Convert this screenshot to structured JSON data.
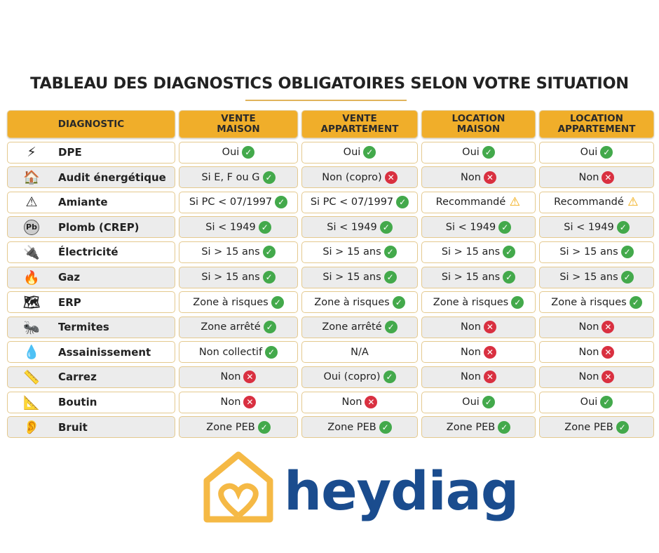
{
  "title": "TABLEAU DES DIAGNOSTICS OBLIGATOIRES SELON VOTRE SITUATION",
  "headers": [
    "DIAGNOSTIC",
    "VENTE MAISON",
    "VENTE APPARTEMENT",
    "LOCATION MAISON",
    "LOCATION APPARTEMENT"
  ],
  "rows": [
    {
      "icon": "energy-label-icon",
      "glyph": "⚡",
      "name": "DPE",
      "cells": [
        {
          "text": "Oui",
          "status": "ok"
        },
        {
          "text": "Oui",
          "status": "ok"
        },
        {
          "text": "Oui",
          "status": "ok"
        },
        {
          "text": "Oui",
          "status": "ok"
        }
      ]
    },
    {
      "icon": "house-gear-icon",
      "glyph": "🏠",
      "name": "Audit énergétique",
      "cells": [
        {
          "text": "Si E, F ou G",
          "status": "ok"
        },
        {
          "text": "Non (copro)",
          "status": "no"
        },
        {
          "text": "Non",
          "status": "no"
        },
        {
          "text": "Non",
          "status": "no"
        }
      ]
    },
    {
      "icon": "asbestos-warning-icon",
      "glyph": "⚠",
      "name": "Amiante",
      "cells": [
        {
          "text": "Si PC < 07/1997",
          "status": "ok"
        },
        {
          "text": "Si PC < 07/1997",
          "status": "ok"
        },
        {
          "text": "Recommandé",
          "status": "warn"
        },
        {
          "text": "Recommandé",
          "status": "warn"
        }
      ]
    },
    {
      "icon": "lead-pb-icon",
      "glyph": "Pb",
      "name": "Plomb (CREP)",
      "cells": [
        {
          "text": "Si < 1949",
          "status": "ok"
        },
        {
          "text": "Si < 1949",
          "status": "ok"
        },
        {
          "text": "Si < 1949",
          "status": "ok"
        },
        {
          "text": "Si < 1949",
          "status": "ok"
        }
      ]
    },
    {
      "icon": "electric-plug-icon",
      "glyph": "🔌",
      "name": "Électricité",
      "cells": [
        {
          "text": "Si > 15 ans",
          "status": "ok"
        },
        {
          "text": "Si > 15 ans",
          "status": "ok"
        },
        {
          "text": "Si > 15 ans",
          "status": "ok"
        },
        {
          "text": "Si > 15 ans",
          "status": "ok"
        }
      ]
    },
    {
      "icon": "gas-flame-icon",
      "glyph": "🔥",
      "name": "Gaz",
      "cells": [
        {
          "text": "Si > 15 ans",
          "status": "ok"
        },
        {
          "text": "Si > 15 ans",
          "status": "ok"
        },
        {
          "text": "Si > 15 ans",
          "status": "ok"
        },
        {
          "text": "Si > 15 ans",
          "status": "ok"
        }
      ]
    },
    {
      "icon": "risk-map-icon",
      "glyph": "🗺",
      "name": "ERP",
      "cells": [
        {
          "text": "Zone à risques",
          "status": "ok"
        },
        {
          "text": "Zone à risques",
          "status": "ok"
        },
        {
          "text": "Zone à risques",
          "status": "ok"
        },
        {
          "text": "Zone à risques",
          "status": "ok"
        }
      ]
    },
    {
      "icon": "termite-icon",
      "glyph": "🐜",
      "name": "Termites",
      "cells": [
        {
          "text": "Zone arrêté",
          "status": "ok"
        },
        {
          "text": "Zone arrêté",
          "status": "ok"
        },
        {
          "text": "Non",
          "status": "no"
        },
        {
          "text": "Non",
          "status": "no"
        }
      ]
    },
    {
      "icon": "pipe-water-drop-icon",
      "glyph": "💧",
      "name": "Assainissement",
      "cells": [
        {
          "text": "Non collectif",
          "status": "ok"
        },
        {
          "text": "N/A",
          "status": "none"
        },
        {
          "text": "Non",
          "status": "no"
        },
        {
          "text": "Non",
          "status": "no"
        }
      ]
    },
    {
      "icon": "tape-measure-icon",
      "glyph": "📏",
      "name": "Carrez",
      "cells": [
        {
          "text": "Non",
          "status": "no"
        },
        {
          "text": "Oui (copro)",
          "status": "ok"
        },
        {
          "text": "Non",
          "status": "no"
        },
        {
          "text": "Non",
          "status": "no"
        }
      ]
    },
    {
      "icon": "ruler-house-icon",
      "glyph": "📐",
      "name": "Boutin",
      "cells": [
        {
          "text": "Non",
          "status": "no"
        },
        {
          "text": "Non",
          "status": "no"
        },
        {
          "text": "Oui",
          "status": "ok"
        },
        {
          "text": "Oui",
          "status": "ok"
        }
      ]
    },
    {
      "icon": "ear-sound-icon",
      "glyph": "👂",
      "name": "Bruit",
      "cells": [
        {
          "text": "Zone PEB",
          "status": "ok"
        },
        {
          "text": "Zone PEB",
          "status": "ok"
        },
        {
          "text": "Zone PEB",
          "status": "ok"
        },
        {
          "text": "Zone PEB",
          "status": "ok"
        }
      ]
    }
  ],
  "brand": "heydiag",
  "colors": {
    "header": "#f0ae2a",
    "ok": "#43a94b",
    "no": "#d93040",
    "warn": "#f0a500",
    "brand": "#1a4c8e",
    "logo": "#f5b945"
  }
}
